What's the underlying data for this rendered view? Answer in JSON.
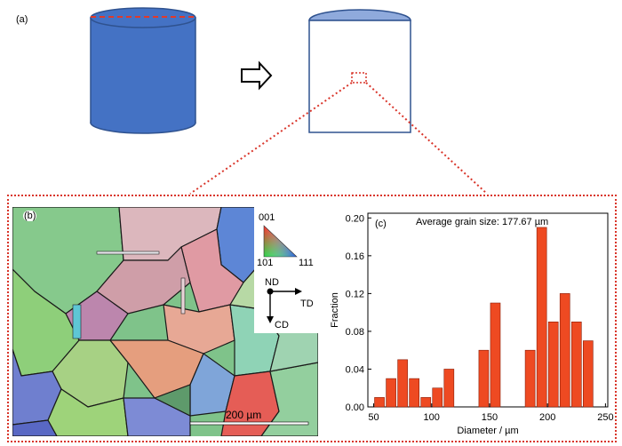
{
  "panels": {
    "a": {
      "label": "(a)"
    },
    "b": {
      "label": "(b)",
      "ipf": {
        "top": "001",
        "left": "101",
        "right": "111"
      },
      "axes": {
        "nd": "ND",
        "td": "TD",
        "cd": "CD"
      },
      "scale_bar": "200 µm"
    },
    "c": {
      "label": "(c)"
    }
  },
  "colors": {
    "cylinder_fill": "#4472c4",
    "cylinder_stroke": "#2f528f",
    "section_top": "#8faadc",
    "dotted": "#d9352a",
    "bar": "#ee4a22",
    "bar_edge": "#8a1e08"
  },
  "chart_data": {
    "type": "bar",
    "title": "",
    "annotation": "Average grain size: 177.67 µm",
    "xlabel": "Diameter / µm",
    "ylabel": "Fraction",
    "xlim": [
      45,
      252
    ],
    "ylim": [
      0,
      0.205
    ],
    "xticks": [
      50,
      100,
      150,
      200,
      250
    ],
    "yticks": [
      0.0,
      0.04,
      0.08,
      0.12,
      0.16,
      0.2
    ],
    "bin_width": 10,
    "bins": [
      {
        "x": 55,
        "y": 0.01
      },
      {
        "x": 65,
        "y": 0.03
      },
      {
        "x": 75,
        "y": 0.05
      },
      {
        "x": 85,
        "y": 0.03
      },
      {
        "x": 95,
        "y": 0.01
      },
      {
        "x": 105,
        "y": 0.02
      },
      {
        "x": 115,
        "y": 0.04
      },
      {
        "x": 145,
        "y": 0.06
      },
      {
        "x": 155,
        "y": 0.11
      },
      {
        "x": 185,
        "y": 0.06
      },
      {
        "x": 195,
        "y": 0.19
      },
      {
        "x": 205,
        "y": 0.09
      },
      {
        "x": 215,
        "y": 0.12
      },
      {
        "x": 225,
        "y": 0.09
      },
      {
        "x": 235,
        "y": 0.07
      }
    ]
  }
}
